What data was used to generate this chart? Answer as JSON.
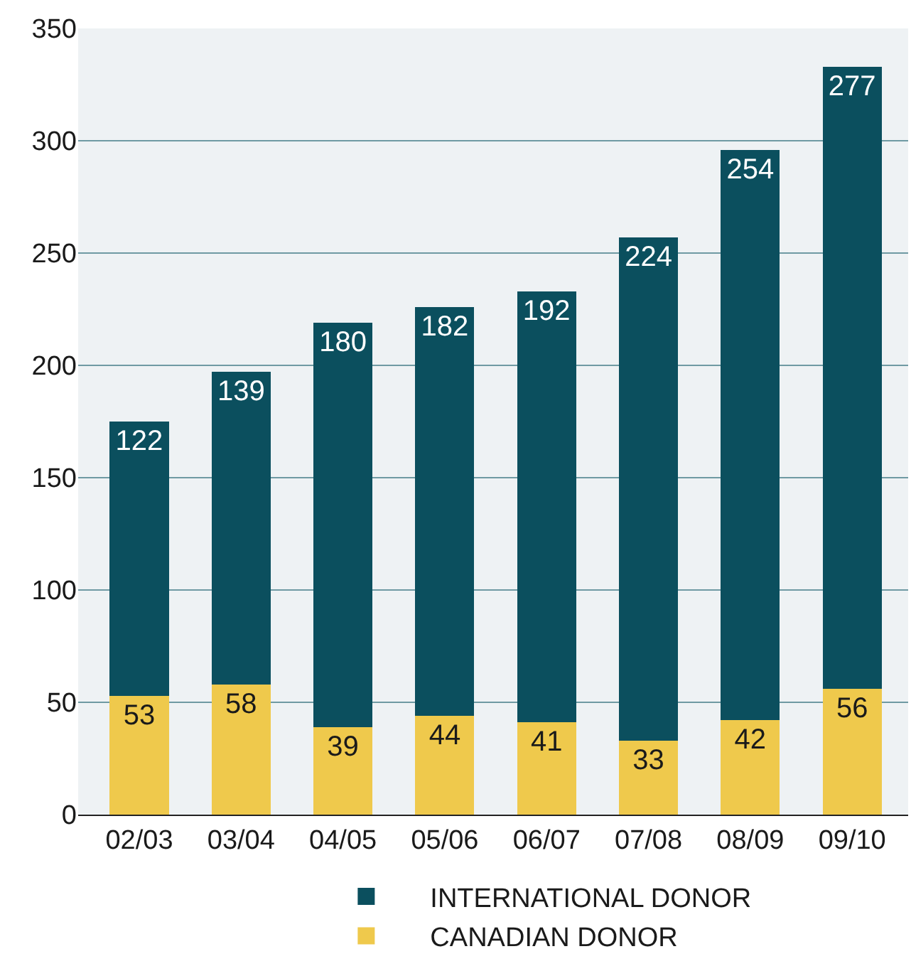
{
  "chart_data": {
    "type": "bar",
    "stacked": true,
    "categories": [
      "02/03",
      "03/04",
      "04/05",
      "05/06",
      "06/07",
      "07/08",
      "08/09",
      "09/10"
    ],
    "series": [
      {
        "name": "CANADIAN DONOR",
        "color": "#efc94c",
        "values": [
          53,
          58,
          39,
          44,
          41,
          33,
          42,
          56
        ]
      },
      {
        "name": "INTERNATIONAL DONOR",
        "color": "#0b4f5e",
        "values": [
          122,
          139,
          180,
          182,
          192,
          224,
          254,
          277
        ]
      }
    ],
    "ylim": [
      0,
      350
    ],
    "yticks": [
      0,
      50,
      100,
      150,
      200,
      250,
      300,
      350
    ],
    "grid": "y",
    "legend": "bottom",
    "data_labels": true
  }
}
